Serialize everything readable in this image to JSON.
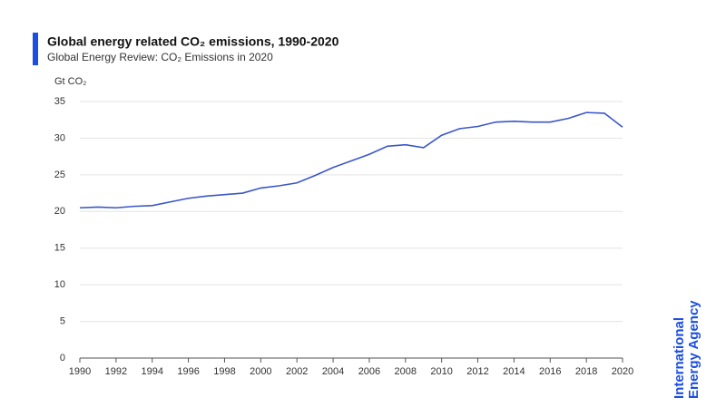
{
  "chart_data": {
    "type": "line",
    "title": "Global energy related CO₂ emissions, 1990-2020",
    "subtitle": "Global Energy Review: CO₂ Emissions in 2020",
    "y_label": "Gt CO₂",
    "logo": [
      "International",
      "Energy Agency"
    ],
    "x": [
      1990,
      1991,
      1992,
      1993,
      1994,
      1995,
      1996,
      1997,
      1998,
      1999,
      2000,
      2001,
      2002,
      2003,
      2004,
      2005,
      2006,
      2007,
      2008,
      2009,
      2010,
      2011,
      2012,
      2013,
      2014,
      2015,
      2016,
      2017,
      2018,
      2019,
      2020
    ],
    "values": [
      20.5,
      20.6,
      20.5,
      20.7,
      20.8,
      21.3,
      21.8,
      22.1,
      22.3,
      22.5,
      23.2,
      23.5,
      23.9,
      24.9,
      26.0,
      26.9,
      27.8,
      28.9,
      29.1,
      28.7,
      30.4,
      31.3,
      31.6,
      32.2,
      32.3,
      32.2,
      32.2,
      32.7,
      33.5,
      33.4,
      31.5
    ],
    "color": "#3a56c9",
    "xlim": [
      1990,
      2020
    ],
    "xticks": [
      1990,
      1992,
      1994,
      1996,
      1998,
      2000,
      2002,
      2004,
      2006,
      2008,
      2010,
      2012,
      2014,
      2016,
      2018,
      2020
    ],
    "ylim": [
      0,
      35
    ],
    "yticks": [
      0,
      5,
      10,
      15,
      20,
      25,
      30,
      35
    ],
    "grid": true
  }
}
